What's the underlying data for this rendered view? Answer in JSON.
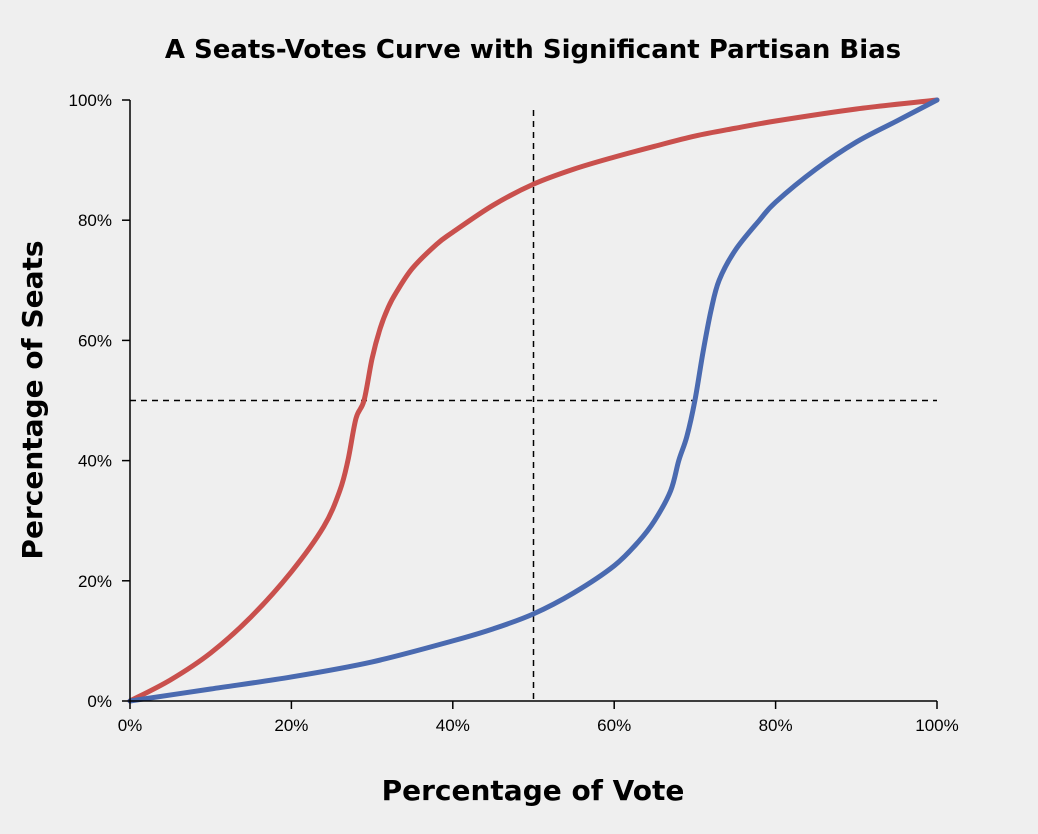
{
  "chart_data": {
    "type": "line",
    "title": "A Seats-Votes Curve with Significant Partisan Bias",
    "xlabel": "Percentage of Vote",
    "ylabel": "Percentage of Seats",
    "xlim": [
      0,
      100
    ],
    "ylim": [
      0,
      100
    ],
    "x_ticks": [
      0,
      20,
      40,
      60,
      80,
      100
    ],
    "x_tick_labels": [
      "0%",
      "20%",
      "40%",
      "60%",
      "80%",
      "100%"
    ],
    "y_ticks": [
      0,
      20,
      40,
      60,
      80,
      100
    ],
    "y_tick_labels": [
      "0%",
      "20%",
      "40%",
      "60%",
      "80%",
      "100%"
    ],
    "grid": false,
    "legend": "none",
    "reference_lines": [
      {
        "orientation": "vertical",
        "x": 50,
        "style": "dashed"
      },
      {
        "orientation": "horizontal",
        "y": 50,
        "style": "dashed"
      }
    ],
    "series": [
      {
        "color": "#c9504d",
        "x": [
          0,
          5,
          10,
          15,
          20,
          24,
          26,
          27,
          28,
          29,
          30,
          31,
          32,
          33,
          35,
          38,
          40,
          45,
          50,
          55,
          60,
          65,
          70,
          75,
          80,
          90,
          100
        ],
        "y": [
          0,
          3.5,
          8,
          14,
          21.5,
          29,
          35,
          40,
          47,
          50,
          57,
          62,
          65.5,
          68,
          72,
          76,
          78,
          82.5,
          86,
          88.5,
          90.5,
          92.3,
          94,
          95.3,
          96.5,
          98.5,
          100
        ]
      },
      {
        "color": "#4a6ab0",
        "x": [
          0,
          10,
          20,
          30,
          40,
          45,
          50,
          55,
          60,
          63,
          65,
          67,
          68,
          69,
          70,
          71,
          72,
          73,
          75,
          78,
          80,
          85,
          90,
          95,
          100
        ],
        "y": [
          0,
          2,
          4,
          6.5,
          10,
          12,
          14.5,
          18,
          22.5,
          26.5,
          30,
          35,
          40,
          44,
          50,
          58,
          65,
          70,
          75,
          80,
          83,
          88.5,
          93,
          96.5,
          100
        ]
      }
    ]
  }
}
